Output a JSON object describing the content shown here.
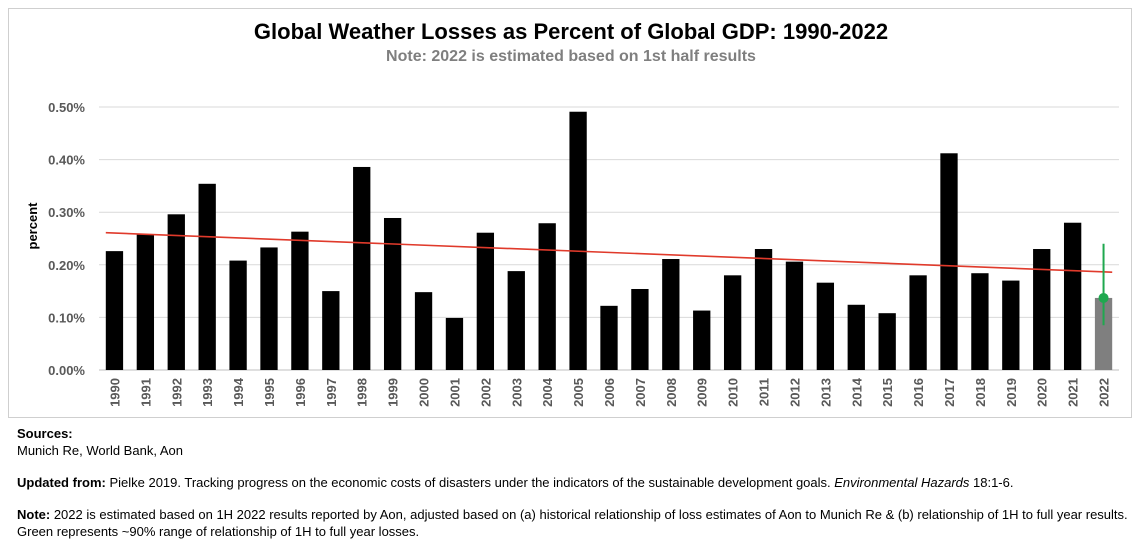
{
  "chart_data": {
    "type": "bar",
    "title": "Global Weather Losses as Percent of Global GDP: 1990-2022",
    "subtitle": "Note: 2022 is estimated based on 1st half results",
    "ylabel": "percent",
    "xlabel": "",
    "ylim": [
      0,
      0.5
    ],
    "yticks": [
      "0.00%",
      "0.10%",
      "0.20%",
      "0.30%",
      "0.40%",
      "0.50%"
    ],
    "ytick_values": [
      0,
      0.1,
      0.2,
      0.3,
      0.4,
      0.5
    ],
    "grid": true,
    "categories": [
      "1990",
      "1991",
      "1992",
      "1993",
      "1994",
      "1995",
      "1996",
      "1997",
      "1998",
      "1999",
      "2000",
      "2001",
      "2002",
      "2003",
      "2004",
      "2005",
      "2006",
      "2007",
      "2008",
      "2009",
      "2010",
      "2011",
      "2012",
      "2013",
      "2014",
      "2015",
      "2016",
      "2017",
      "2018",
      "2019",
      "2020",
      "2021",
      "2022"
    ],
    "values": [
      0.226,
      0.258,
      0.296,
      0.354,
      0.208,
      0.233,
      0.263,
      0.15,
      0.386,
      0.289,
      0.148,
      0.099,
      0.261,
      0.188,
      0.279,
      0.491,
      0.122,
      0.154,
      0.211,
      0.113,
      0.18,
      0.23,
      0.206,
      0.166,
      0.124,
      0.108,
      0.18,
      0.412,
      0.184,
      0.17,
      0.23,
      0.28,
      0.137
    ],
    "estimated_category": "2022",
    "trend_line": {
      "start": 0.261,
      "end": 0.186
    },
    "estimate_range": {
      "low": 0.085,
      "high": 0.24,
      "point": 0.137
    },
    "colors": {
      "bars": "#000000",
      "estimated_bar": "#7f7f7f",
      "trend": "#e03a2b",
      "range": "#1fa84f",
      "grid": "#d9d9d9"
    }
  },
  "footer": {
    "sources_heading": "Sources:",
    "sources_text": "Munich Re,  World Bank,  Aon",
    "updated_heading": "Updated from:",
    "updated_text": " Pielke 2019. Tracking progress on the economic costs of disasters under the indicators of the sustainable development goals. ",
    "updated_journal": "Environmental Hazards",
    "updated_tail": " 18:1-6.",
    "note_heading": "Note:",
    "note_text": " 2022 is estimated based on 1H 2022 results reported by Aon, adjusted based on (a) historical relationship of loss estimates of Aon to Munich Re & (b) relationship of 1H to full year results. Green represents ~90% range of relationship of 1H to full year losses."
  }
}
